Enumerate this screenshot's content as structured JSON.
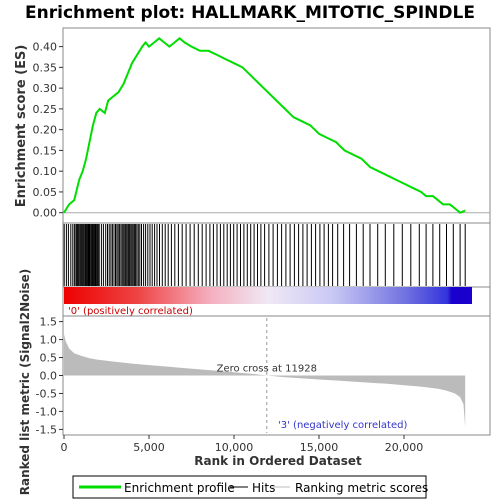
{
  "chart_data": {
    "title": "Enrichment plot: HALLMARK_MITOTIC_SPINDLE",
    "type": "line",
    "xlabel": "Rank in Ordered Dataset",
    "xlim": [
      0,
      24000
    ],
    "x_ticks": [
      "0",
      "5,000",
      "10,000",
      "15,000",
      "20,000"
    ],
    "x_tick_values": [
      0,
      5000,
      10000,
      15000,
      20000
    ],
    "es_panel": {
      "ylabel": "Enrichment score (ES)",
      "ylim": [
        -0.02,
        0.44
      ],
      "y_ticks": [
        "0.00",
        "0.05",
        "0.10",
        "0.15",
        "0.20",
        "0.25",
        "0.30",
        "0.35",
        "0.40"
      ],
      "y_tick_values": [
        0,
        0.05,
        0.1,
        0.15,
        0.2,
        0.25,
        0.3,
        0.35,
        0.4
      ],
      "series_name": "Enrichment profile",
      "color": "#00dd00",
      "x": [
        0,
        300,
        600,
        900,
        1100,
        1300,
        1500,
        1700,
        1900,
        2100,
        2400,
        2600,
        2900,
        3200,
        3500,
        3800,
        4000,
        4300,
        4600,
        4800,
        5000,
        5300,
        5600,
        5900,
        6200,
        6500,
        6800,
        7100,
        7500,
        8000,
        8500,
        9000,
        9500,
        10000,
        10500,
        11000,
        11500,
        12000,
        12500,
        13000,
        13500,
        14000,
        14500,
        15000,
        15500,
        16000,
        16500,
        17000,
        17500,
        18000,
        18500,
        19000,
        19500,
        20000,
        20500,
        21000,
        21300,
        21700,
        22000,
        22300,
        22700,
        23000,
        23300,
        23600
      ],
      "y": [
        0.0,
        0.02,
        0.03,
        0.08,
        0.1,
        0.13,
        0.17,
        0.21,
        0.24,
        0.25,
        0.24,
        0.27,
        0.28,
        0.29,
        0.31,
        0.34,
        0.36,
        0.38,
        0.4,
        0.41,
        0.4,
        0.41,
        0.42,
        0.41,
        0.4,
        0.41,
        0.42,
        0.41,
        0.4,
        0.39,
        0.39,
        0.38,
        0.37,
        0.36,
        0.35,
        0.33,
        0.31,
        0.29,
        0.27,
        0.25,
        0.23,
        0.22,
        0.21,
        0.19,
        0.18,
        0.17,
        0.15,
        0.14,
        0.13,
        0.11,
        0.1,
        0.09,
        0.08,
        0.07,
        0.06,
        0.05,
        0.04,
        0.04,
        0.03,
        0.02,
        0.02,
        0.01,
        0.0,
        0.005
      ]
    },
    "hits": [
      10,
      140,
      260,
      400,
      520,
      610,
      700,
      760,
      820,
      880,
      950,
      1010,
      1070,
      1130,
      1190,
      1250,
      1300,
      1360,
      1420,
      1470,
      1520,
      1580,
      1640,
      1690,
      1740,
      1800,
      1850,
      1900,
      1960,
      2010,
      2070,
      2200,
      2320,
      2450,
      2560,
      2660,
      2760,
      2850,
      2940,
      3030,
      3110,
      3190,
      3270,
      3350,
      3430,
      3510,
      3580,
      3650,
      3720,
      3790,
      3860,
      3930,
      4000,
      4070,
      4140,
      4210,
      4290,
      4370,
      4460,
      4560,
      4680,
      4800,
      4930,
      5060,
      5190,
      5330,
      5470,
      5620,
      5780,
      5950,
      6130,
      6320,
      6520,
      6730,
      6950,
      7180,
      7420,
      7660,
      7900,
      8130,
      8360,
      8580,
      8790,
      9000,
      9200,
      9400,
      9600,
      9790,
      9980,
      10180,
      10380,
      10580,
      10780,
      10980,
      11180,
      11380,
      11580,
      11800,
      12050,
      12300,
      12550,
      12800,
      13050,
      13300,
      13550,
      13800,
      14050,
      14300,
      14550,
      14800,
      15050,
      15300,
      15550,
      15800,
      16100,
      16450,
      16800,
      17200,
      17600,
      18000,
      18450,
      18900,
      19400,
      19900,
      20400,
      20900,
      21300,
      21700,
      22100,
      22500,
      22900,
      23300,
      23600
    ],
    "gradient_labels": {
      "positive": "'0' (positively correlated)",
      "negative": "'3' (negatively correlated)"
    },
    "metric_panel": {
      "ylabel": "Ranked list metric (Signal2Noise)",
      "ylim": [
        -1.6,
        1.6
      ],
      "y_ticks": [
        "-1.5",
        "-1.0",
        "-0.5",
        "0.0",
        "0.5",
        "1.0",
        "1.5"
      ],
      "y_tick_values": [
        -1.5,
        -1.0,
        -0.5,
        0.0,
        0.5,
        1.0,
        1.5
      ],
      "zero_cross_label": "Zero cross at 11928",
      "zero_cross": 11928,
      "x": [
        0,
        100,
        300,
        600,
        1000,
        1500,
        2000,
        3000,
        4000,
        5000,
        6000,
        7000,
        8000,
        9000,
        10000,
        11000,
        11928,
        13000,
        14000,
        15000,
        16000,
        17000,
        18000,
        19000,
        20000,
        21000,
        22000,
        22500,
        23000,
        23300,
        23500,
        23600
      ],
      "y": [
        1.15,
        0.95,
        0.75,
        0.62,
        0.55,
        0.48,
        0.44,
        0.38,
        0.33,
        0.29,
        0.25,
        0.21,
        0.17,
        0.13,
        0.09,
        0.05,
        0.0,
        -0.05,
        -0.08,
        -0.11,
        -0.14,
        -0.17,
        -0.2,
        -0.23,
        -0.27,
        -0.31,
        -0.37,
        -0.42,
        -0.5,
        -0.6,
        -0.8,
        -1.45
      ]
    },
    "legend": {
      "placement": "bottom",
      "items": [
        {
          "label": "Enrichment profile",
          "color": "#00dd00"
        },
        {
          "label": "Hits",
          "color": "#000000"
        },
        {
          "label": "Ranking metric scores",
          "color": "#bbbbbb"
        }
      ]
    }
  }
}
